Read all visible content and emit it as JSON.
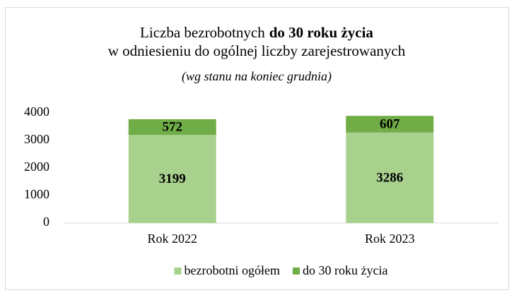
{
  "chart_data": {
    "type": "stacked_bar",
    "title_parts": [
      "Liczba bezrobotnych",
      "do 30 roku życia",
      "w odniesieniu do ogólnej liczby zarejestrowanych"
    ],
    "subtitle": "(wg stanu na koniec grudnia)",
    "categories": [
      "Rok 2022",
      "Rok 2023"
    ],
    "series": [
      {
        "name": "bezrobotni ogółem",
        "color": "#a9d18e",
        "values": [
          3199,
          3286
        ]
      },
      {
        "name": "do 30 roku życia",
        "color": "#70ad47",
        "values": [
          572,
          607
        ]
      }
    ],
    "ylim": [
      0,
      4000
    ],
    "yticks": [
      0,
      1000,
      2000,
      3000,
      4000
    ],
    "grid": false,
    "legend": "bottom"
  }
}
